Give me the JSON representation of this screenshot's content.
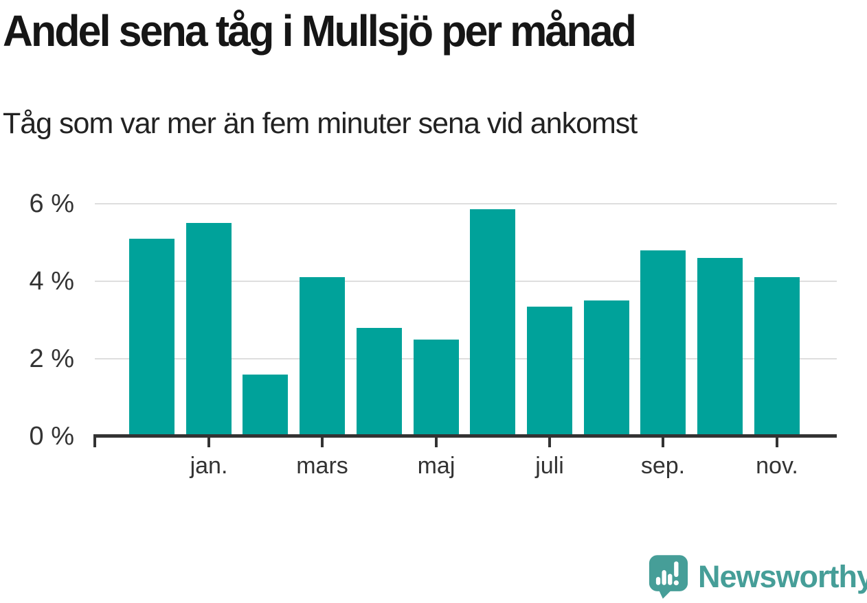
{
  "header": {
    "title": "Andel sena tåg i Mullsjö per månad",
    "subtitle": "Tåg som var mer än fem minuter sena vid ankomst"
  },
  "chart_data": {
    "type": "bar",
    "title": "Andel sena tåg i Mullsjö per månad",
    "subtitle": "Tåg som var mer än fem minuter sena vid ankomst",
    "xlabel": "",
    "ylabel": "",
    "unit": "%",
    "categories": [
      "",
      "jan.",
      "",
      "mars",
      "",
      "maj",
      "",
      "juli",
      "",
      "sep.",
      "",
      "nov."
    ],
    "values": [
      5.1,
      5.5,
      1.6,
      4.1,
      2.8,
      2.5,
      5.85,
      3.35,
      3.5,
      4.8,
      4.6,
      4.1
    ],
    "x_tick_labels": [
      "jan.",
      "mars",
      "maj",
      "juli",
      "sep.",
      "nov."
    ],
    "x_tick_label_indices": [
      1,
      3,
      5,
      7,
      9,
      11
    ],
    "y_ticks": [
      0,
      2,
      4,
      6
    ],
    "y_tick_labels": [
      "0 %",
      "2 %",
      "4 %",
      "6 %"
    ],
    "ylim": [
      0,
      6.3
    ],
    "grid": "horizontal",
    "legend_position": "none",
    "bar_color": "#00a29a",
    "axis_color": "#333333",
    "gridline_color": "#dedede"
  },
  "footer": {
    "brand": "Newsworthy",
    "brand_color": "#469e98",
    "logo_icon": "newsworthy-speech-bubble-bar-chart-icon"
  }
}
